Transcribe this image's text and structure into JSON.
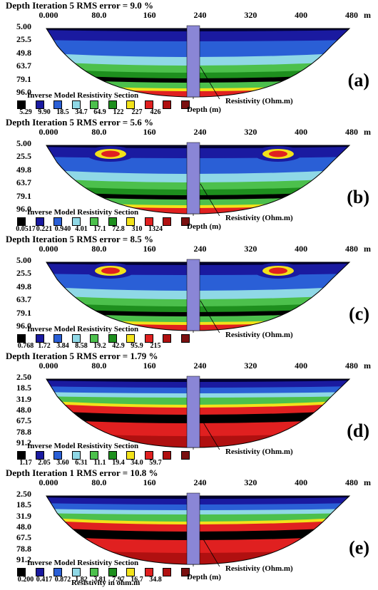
{
  "panels": [
    {
      "id": "a",
      "title": "Depth Iteration 5 RMS error = 9.0 %",
      "x_ticks": [
        "0.000",
        "80.0",
        "160",
        "240",
        "320",
        "400",
        "480"
      ],
      "x_unit": "m",
      "depths": [
        "5.00",
        "25.5",
        "49.8",
        "63.7",
        "79.1",
        "96.0"
      ],
      "legend_title": "Inverse Model Resistivity Section",
      "legend_values": [
        "5.29",
        "9.90",
        "18.5",
        "34.7",
        "64.9",
        "122",
        "227",
        "426"
      ],
      "depth_label": "Depth (m)",
      "res_label": "Resistivity (Ohm.m)",
      "letter": "(a)"
    },
    {
      "id": "b",
      "title": "Depth Iteration 5 RMS error = 5.6 %",
      "x_ticks": [
        "0.000",
        "80.0",
        "160",
        "240",
        "320",
        "400",
        "480"
      ],
      "x_unit": "m",
      "depths": [
        "5.00",
        "25.5",
        "49.8",
        "63.7",
        "79.1",
        "96.0"
      ],
      "legend_title": "Inverse Model Resistivity Section",
      "legend_values": [
        "0.0517",
        "0.221",
        "0.940",
        "4.01",
        "17.1",
        "72.8",
        "310",
        "1324"
      ],
      "depth_label": "Depth (m)",
      "res_label": "Resistivity (Ohm.m)",
      "letter": "(b)"
    },
    {
      "id": "c",
      "title": "Depth Iteration 5 RMS error = 8.5 %",
      "x_ticks": [
        "0.000",
        "80.0",
        "160",
        "240",
        "320",
        "400",
        "480"
      ],
      "x_unit": "m",
      "depths": [
        "5.00",
        "25.5",
        "49.8",
        "63.7",
        "79.1",
        "96.0"
      ],
      "legend_title": "Inverse Model Resistivity Section",
      "legend_values": [
        "0.768",
        "1.72",
        "3.84",
        "8.58",
        "19.2",
        "42.9",
        "95.9",
        "215"
      ],
      "depth_label": "",
      "res_label": "Resistivity (Ohm.m)",
      "letter": "(c)"
    },
    {
      "id": "d",
      "title": "Depth Iteration 5 RMS error = 1.79 %",
      "x_ticks": [
        "0.000",
        "80.0",
        "160",
        "240",
        "320",
        "400",
        "480"
      ],
      "x_unit": "m",
      "depths": [
        "2.50",
        "18.5",
        "31.9",
        "48.0",
        "67.5",
        "78.8",
        "91.2"
      ],
      "legend_title": "Inverse Model Resistivity Section",
      "legend_values": [
        "1.17",
        "2.05",
        "3.60",
        "6.31",
        "11.1",
        "19.4",
        "34.0",
        "59.7"
      ],
      "depth_label": "",
      "res_label": "Resistivity (Ohm.m)",
      "letter": "(d)"
    },
    {
      "id": "e",
      "title": "Depth Iteration 1 RMS error = 10.8 %",
      "x_ticks": [
        "0.000",
        "80.0",
        "160",
        "240",
        "320",
        "400",
        "480"
      ],
      "x_unit": "m",
      "depths": [
        "2.50",
        "18.5",
        "31.9",
        "48.0",
        "67.5",
        "78.8",
        "91.2"
      ],
      "legend_title": "Inverse Model Resistivity Section",
      "legend_values": [
        "0.200",
        "0.417",
        "0.872",
        "1.82",
        "3.81",
        "7.97",
        "16.7",
        "34.8"
      ],
      "depth_label": "Depth (m)",
      "res_label": "Resistivity (Ohm.m)",
      "letter": "(e)"
    }
  ],
  "footer": "Resistivity in ohm.m",
  "legend_colors": [
    "#000000",
    "#1a1aa0",
    "#2a5fd6",
    "#8fd8e6",
    "#4cc04c",
    "#1e8f1e",
    "#f2e21a",
    "#e02020",
    "#b01010",
    "#7a1010"
  ]
}
